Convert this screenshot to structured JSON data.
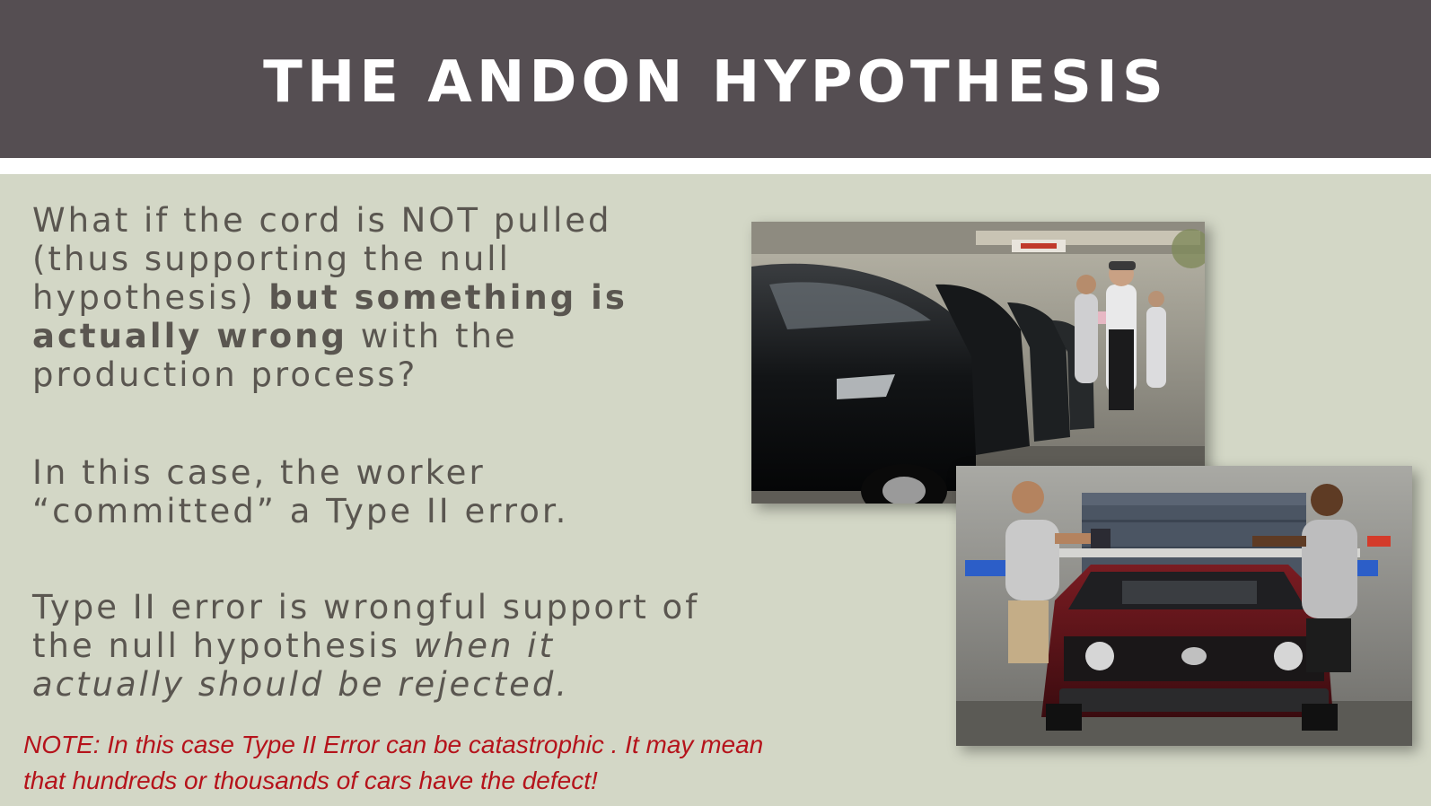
{
  "slide": {
    "title": "THE ANDON HYPOTHESIS",
    "paragraph1": {
      "normal_a": "What if the cord is NOT pulled (thus supporting the null hypothesis) ",
      "bold_b": "but something is actually wrong",
      "normal_c": " with the production process?"
    },
    "paragraph2": "In this case, the worker “committed” a Type II error.",
    "paragraph3": {
      "normal_a": "Type II error is wrongful support of the null hypothesis ",
      "italic_b": "when it actually should be rejected."
    },
    "note": {
      "line1": "NOTE: In this case Type II Error can be catastrophic . It may mean",
      "line2": "that hundreds or thousands of cars have the defect!"
    }
  },
  "colors": {
    "title_bar": "#554e52",
    "background": "#d3d7c6",
    "body_text": "#5a5650",
    "note_text": "#b5131b"
  }
}
